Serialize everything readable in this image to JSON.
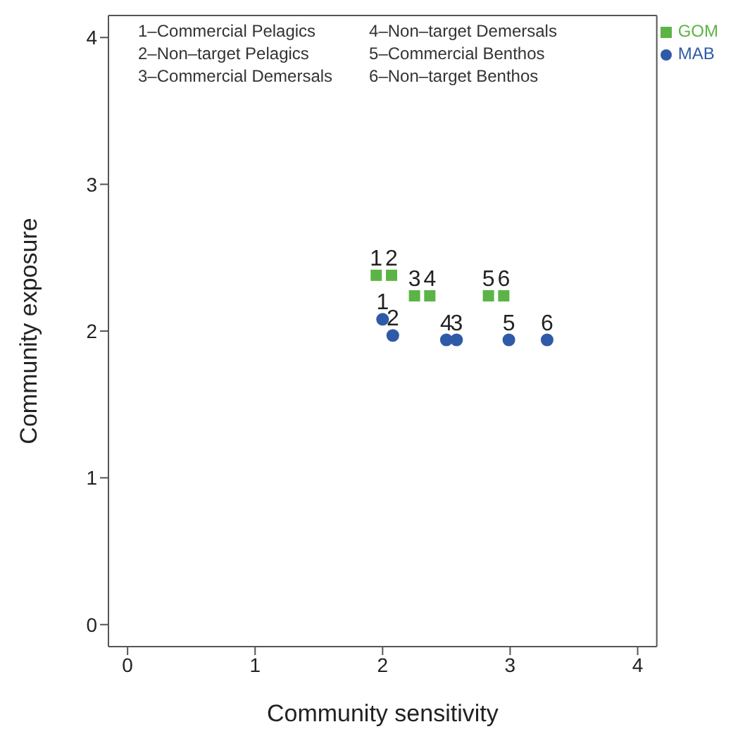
{
  "chart_data": {
    "type": "scatter",
    "xlabel": "Community sensitivity",
    "ylabel": "Community exposure",
    "xlim": [
      -0.15,
      4.15
    ],
    "ylim": [
      -0.15,
      4.15
    ],
    "xticks": [
      0,
      1,
      2,
      3,
      4
    ],
    "yticks": [
      0,
      1,
      2,
      3,
      4
    ],
    "grid": false,
    "legend": "top right",
    "series": [
      {
        "name": "GOM",
        "color": "#5cb446",
        "marker": "square",
        "x": [
          1.95,
          2.07,
          2.25,
          2.37,
          2.83,
          2.95
        ],
        "values": [
          2.38,
          2.38,
          2.24,
          2.24,
          2.24,
          2.24
        ]
      },
      {
        "name": "MAB",
        "color": "#2f5aa8",
        "marker": "circle",
        "x": [
          2.0,
          2.08,
          2.58,
          2.5,
          2.99,
          3.29
        ],
        "values": [
          2.08,
          1.97,
          1.94,
          1.94,
          1.94,
          1.94
        ]
      }
    ],
    "annotations": [
      "1–Commercial Pelagics",
      "2–Non–target Pelagics",
      "3–Commercial Demersals",
      "4–Non–target Demersals",
      "5–Commercial Benthos",
      "6–Non–target Benthos",
      {
        "text": "1",
        "x": 1.95,
        "y": 2.38
      },
      {
        "text": "2",
        "x": 2.07,
        "y": 2.38
      },
      {
        "text": "3",
        "x": 2.25,
        "y": 2.24
      },
      {
        "text": "4",
        "x": 2.37,
        "y": 2.24
      },
      {
        "text": "5",
        "x": 2.83,
        "y": 2.24
      },
      {
        "text": "6",
        "x": 2.95,
        "y": 2.24
      },
      {
        "text": "1",
        "x": 2.0,
        "y": 2.08
      },
      {
        "text": "2",
        "x": 2.08,
        "y": 1.97
      },
      {
        "text": "4",
        "x": 2.5,
        "y": 1.94
      },
      {
        "text": "3",
        "x": 2.58,
        "y": 1.94
      },
      {
        "text": "5",
        "x": 2.99,
        "y": 1.94
      },
      {
        "text": "6",
        "x": 3.29,
        "y": 1.94
      }
    ]
  }
}
